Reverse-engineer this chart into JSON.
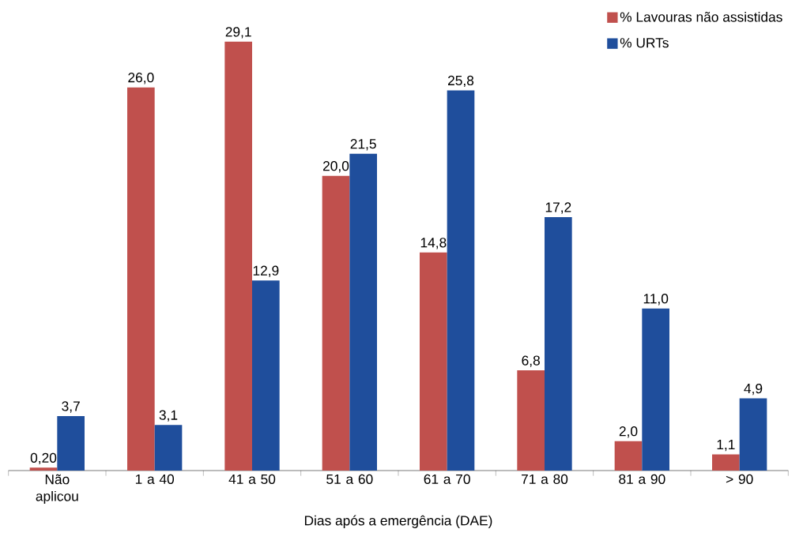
{
  "chart_data": {
    "type": "bar",
    "xlabel": "Dias após a emergência (DAE)",
    "categories": [
      "Não aplicou",
      "1 a 40",
      "41 a 50",
      "51 a 60",
      "61 a 70",
      "71 a 80",
      "81 a 90",
      "> 90"
    ],
    "series": [
      {
        "name": "% Lavouras não assistidas",
        "color": "#c0504d",
        "values": [
          0.2,
          26.0,
          29.1,
          20.0,
          14.8,
          6.8,
          2.0,
          1.1
        ],
        "value_labels": [
          "0,20",
          "26,0",
          "29,1",
          "20,0",
          "14,8",
          "6,8",
          "2,0",
          "1,1"
        ]
      },
      {
        "name": "% URTs",
        "color": "#1f4e9c",
        "values": [
          3.7,
          3.1,
          12.9,
          21.5,
          25.8,
          17.2,
          11.0,
          4.9
        ],
        "value_labels": [
          "3,7",
          "3,1",
          "12,9",
          "21,5",
          "25,8",
          "17,2",
          "11,0",
          "4,9"
        ]
      }
    ],
    "legend": "top right",
    "grid": false
  }
}
